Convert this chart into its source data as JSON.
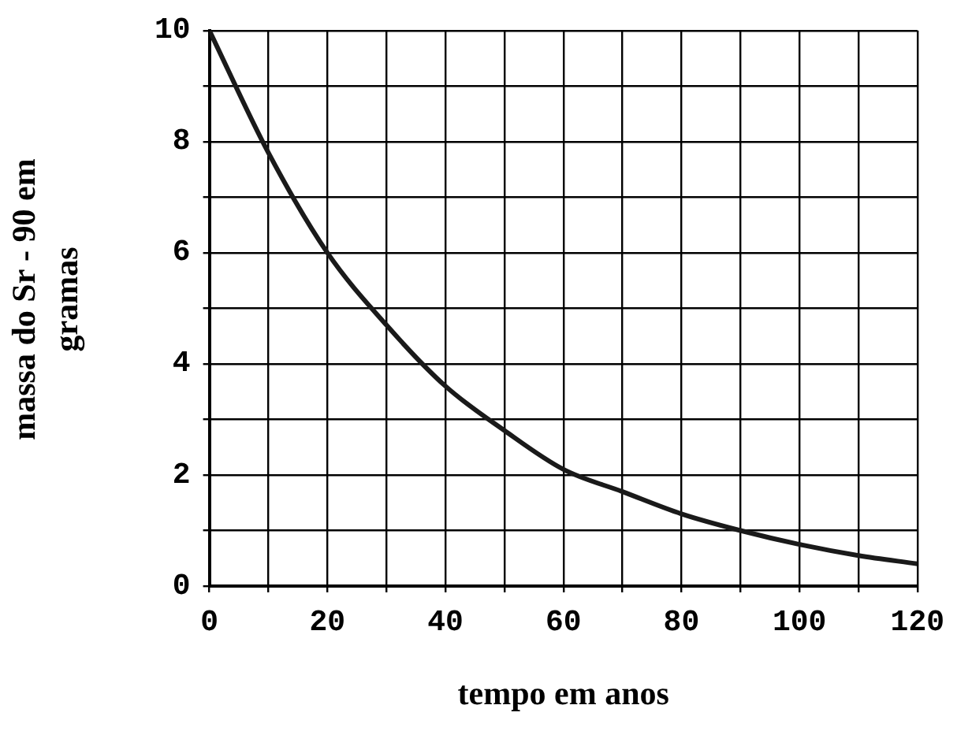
{
  "chart_data": {
    "type": "line",
    "xlabel": "tempo em anos",
    "ylabel": "massa do Sr - 90 em gramas",
    "x": [
      0,
      10,
      20,
      30,
      40,
      50,
      60,
      70,
      80,
      90,
      100,
      110,
      120
    ],
    "series": [
      {
        "color": "#1a1a1a",
        "values": [
          10,
          7.8,
          6.0,
          4.7,
          3.6,
          2.8,
          2.1,
          1.7,
          1.3,
          1.0,
          0.75,
          0.55,
          0.4
        ]
      }
    ],
    "xlim": [
      0,
      120
    ],
    "ylim": [
      0,
      10
    ],
    "xticks": [
      0,
      {
        "value": 10,
        "label": null
      },
      20,
      {
        "value": 30,
        "label": null
      },
      40,
      {
        "value": 50,
        "label": null
      },
      60,
      {
        "value": 70,
        "label": null
      },
      80,
      {
        "value": 90,
        "label": null
      },
      100,
      {
        "value": 110,
        "label": null
      },
      120
    ],
    "yticks": [
      0,
      {
        "value": 1,
        "label": null
      },
      2,
      {
        "value": 3,
        "label": null
      },
      4,
      {
        "value": 5,
        "label": null
      },
      6,
      {
        "value": 7,
        "label": null
      },
      8,
      {
        "value": 9,
        "label": null
      },
      10
    ],
    "grid": true,
    "legend": false,
    "marker": "none",
    "line_style": "solid"
  }
}
